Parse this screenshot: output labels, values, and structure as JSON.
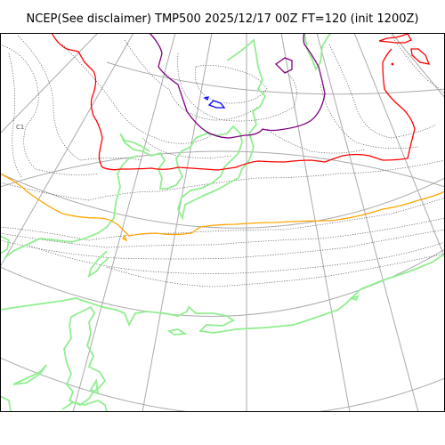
{
  "title": "NCEP(See disclaimer) TMP500 2025/12/17 00Z FT=120 (init 1200Z)",
  "map_label": "C1",
  "colors": {
    "background": "#ffffff",
    "graticule": "#aaaaaa",
    "coastline": "#90ee90",
    "isotherm_dotted": "#555555",
    "contour_orange": "#ffa500",
    "contour_red": "#ff0000",
    "contour_purple": "#800080",
    "contour_blue": "#0000ff",
    "frame": "#000000"
  },
  "legend_icons": {
    "graticule": "meridian-parallel-lines",
    "coastline": "land-outline",
    "isotherms": "dotted-temperature-contours"
  }
}
